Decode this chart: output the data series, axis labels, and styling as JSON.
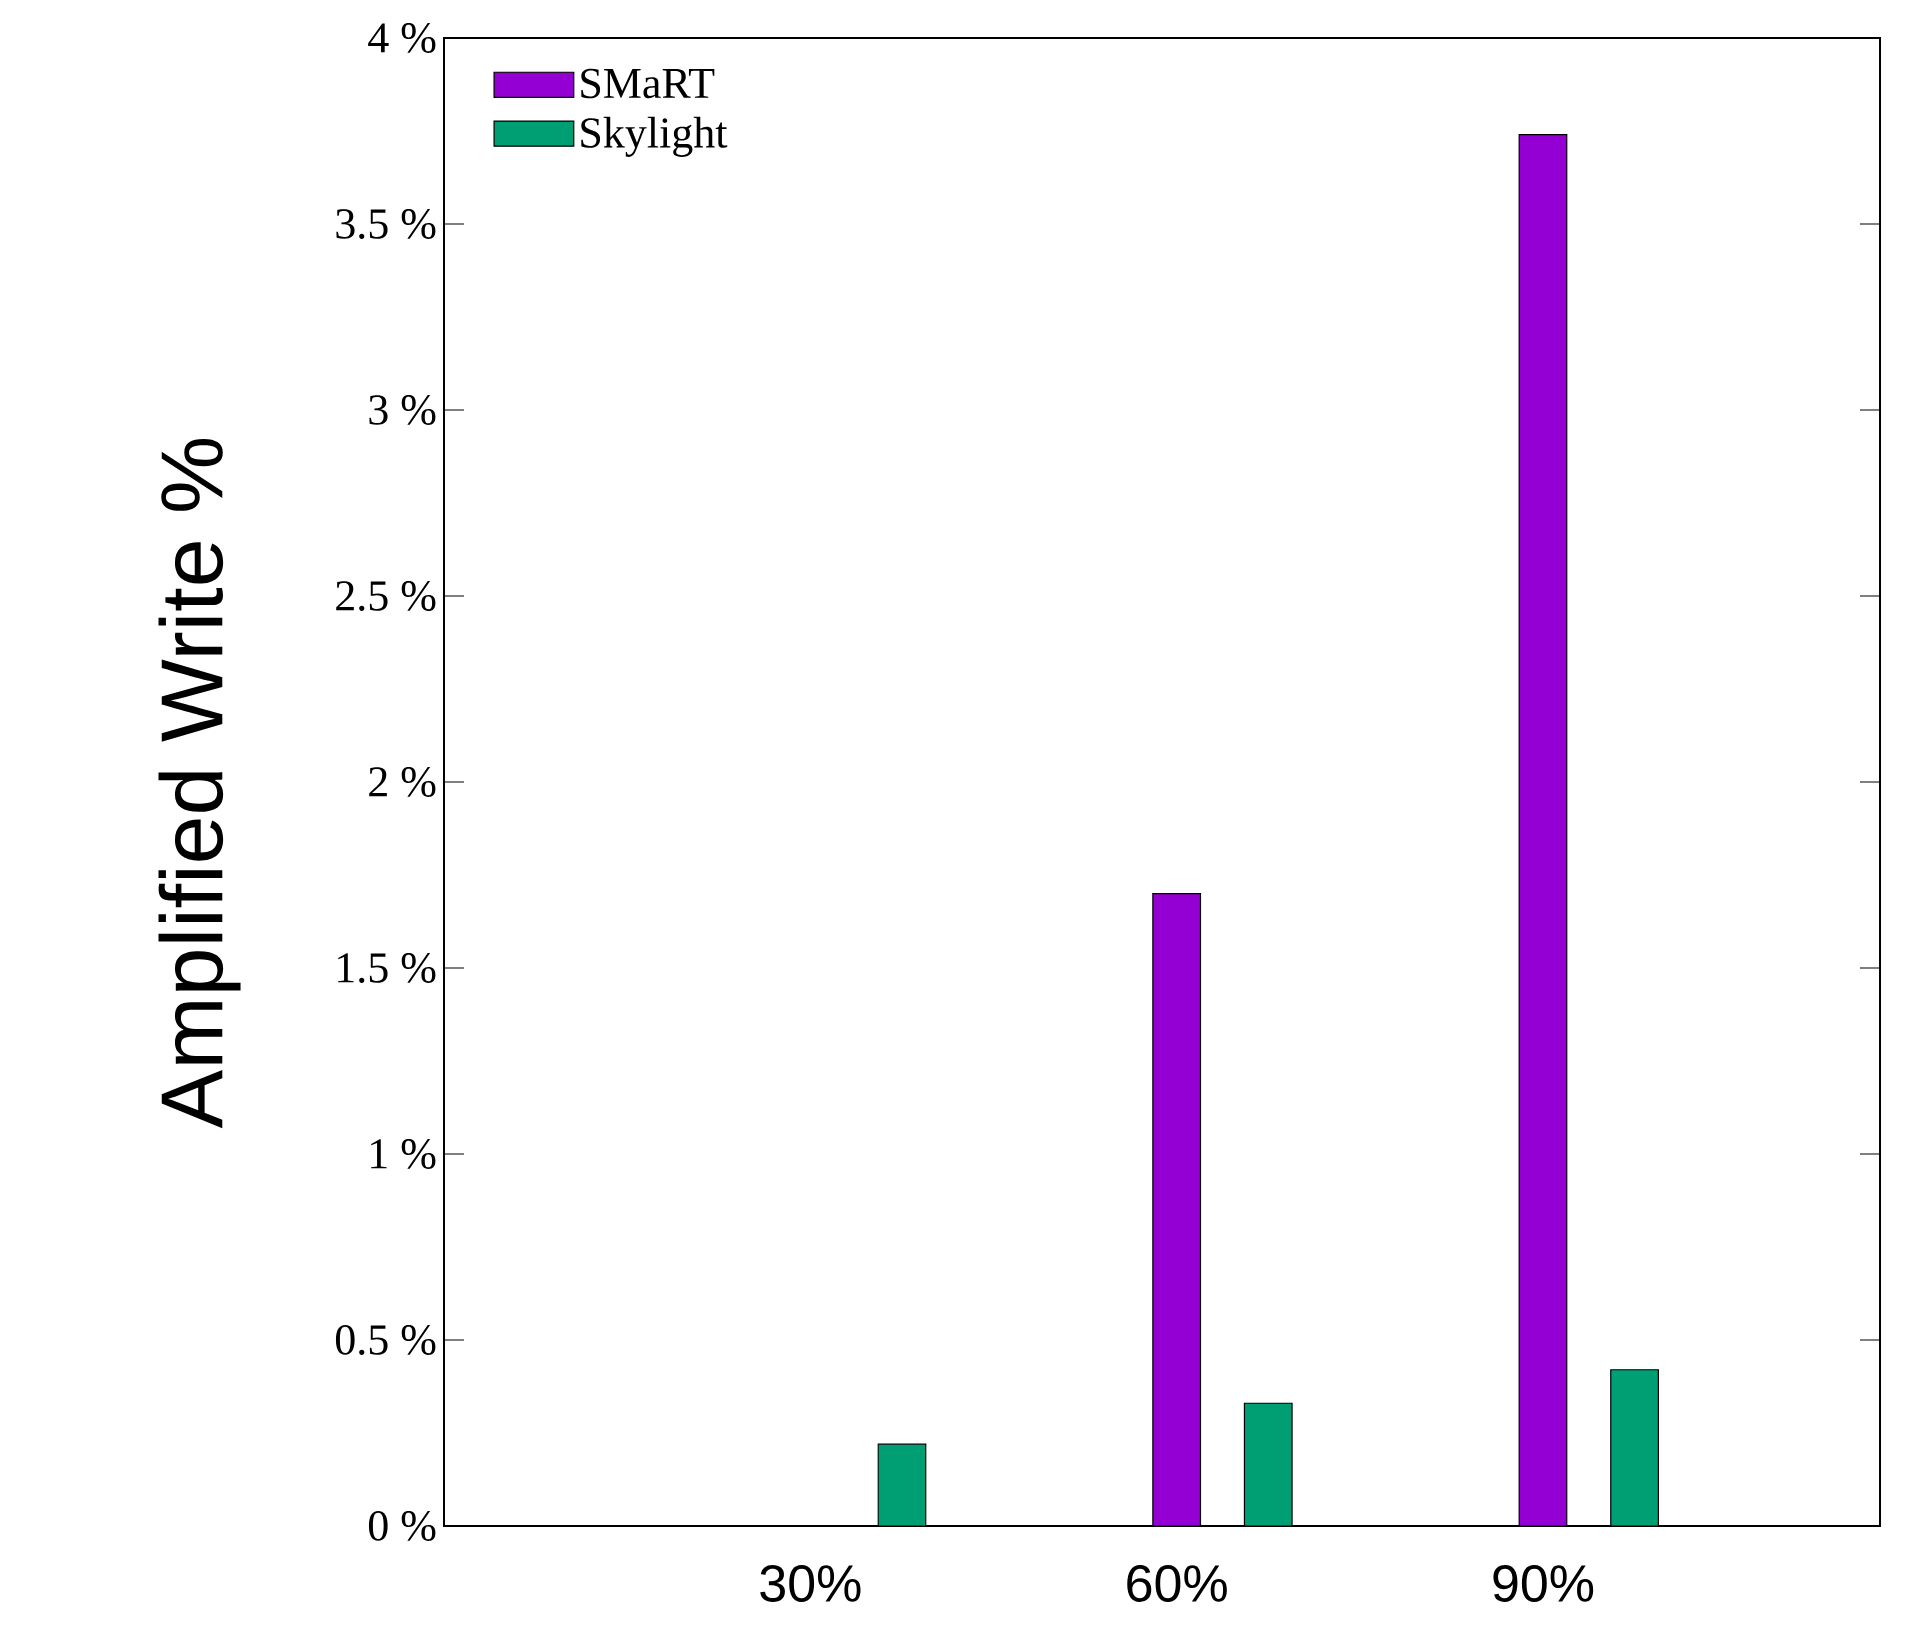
{
  "chart_data": {
    "type": "bar",
    "ylabel": "Amplified Write %",
    "categories": [
      "30%",
      "60%",
      "90%"
    ],
    "series": [
      {
        "name": "SMaRT",
        "color": "#9400d3",
        "values": [
          0,
          1.7,
          3.74
        ]
      },
      {
        "name": "Skylight",
        "color": "#009e73",
        "values": [
          0.22,
          0.33,
          0.42
        ]
      }
    ],
    "ylim": [
      0,
      4
    ],
    "yticks": [
      {
        "value": 0,
        "label": "0 %"
      },
      {
        "value": 0.5,
        "label": "0.5 %"
      },
      {
        "value": 1,
        "label": "1 %"
      },
      {
        "value": 1.5,
        "label": "1.5 %"
      },
      {
        "value": 2,
        "label": "2 %"
      },
      {
        "value": 2.5,
        "label": "2.5 %"
      },
      {
        "value": 3,
        "label": "3 %"
      },
      {
        "value": 3.5,
        "label": "3.5 %"
      },
      {
        "value": 4,
        "label": "4 %"
      }
    ],
    "grid": false,
    "legend": "top left"
  }
}
